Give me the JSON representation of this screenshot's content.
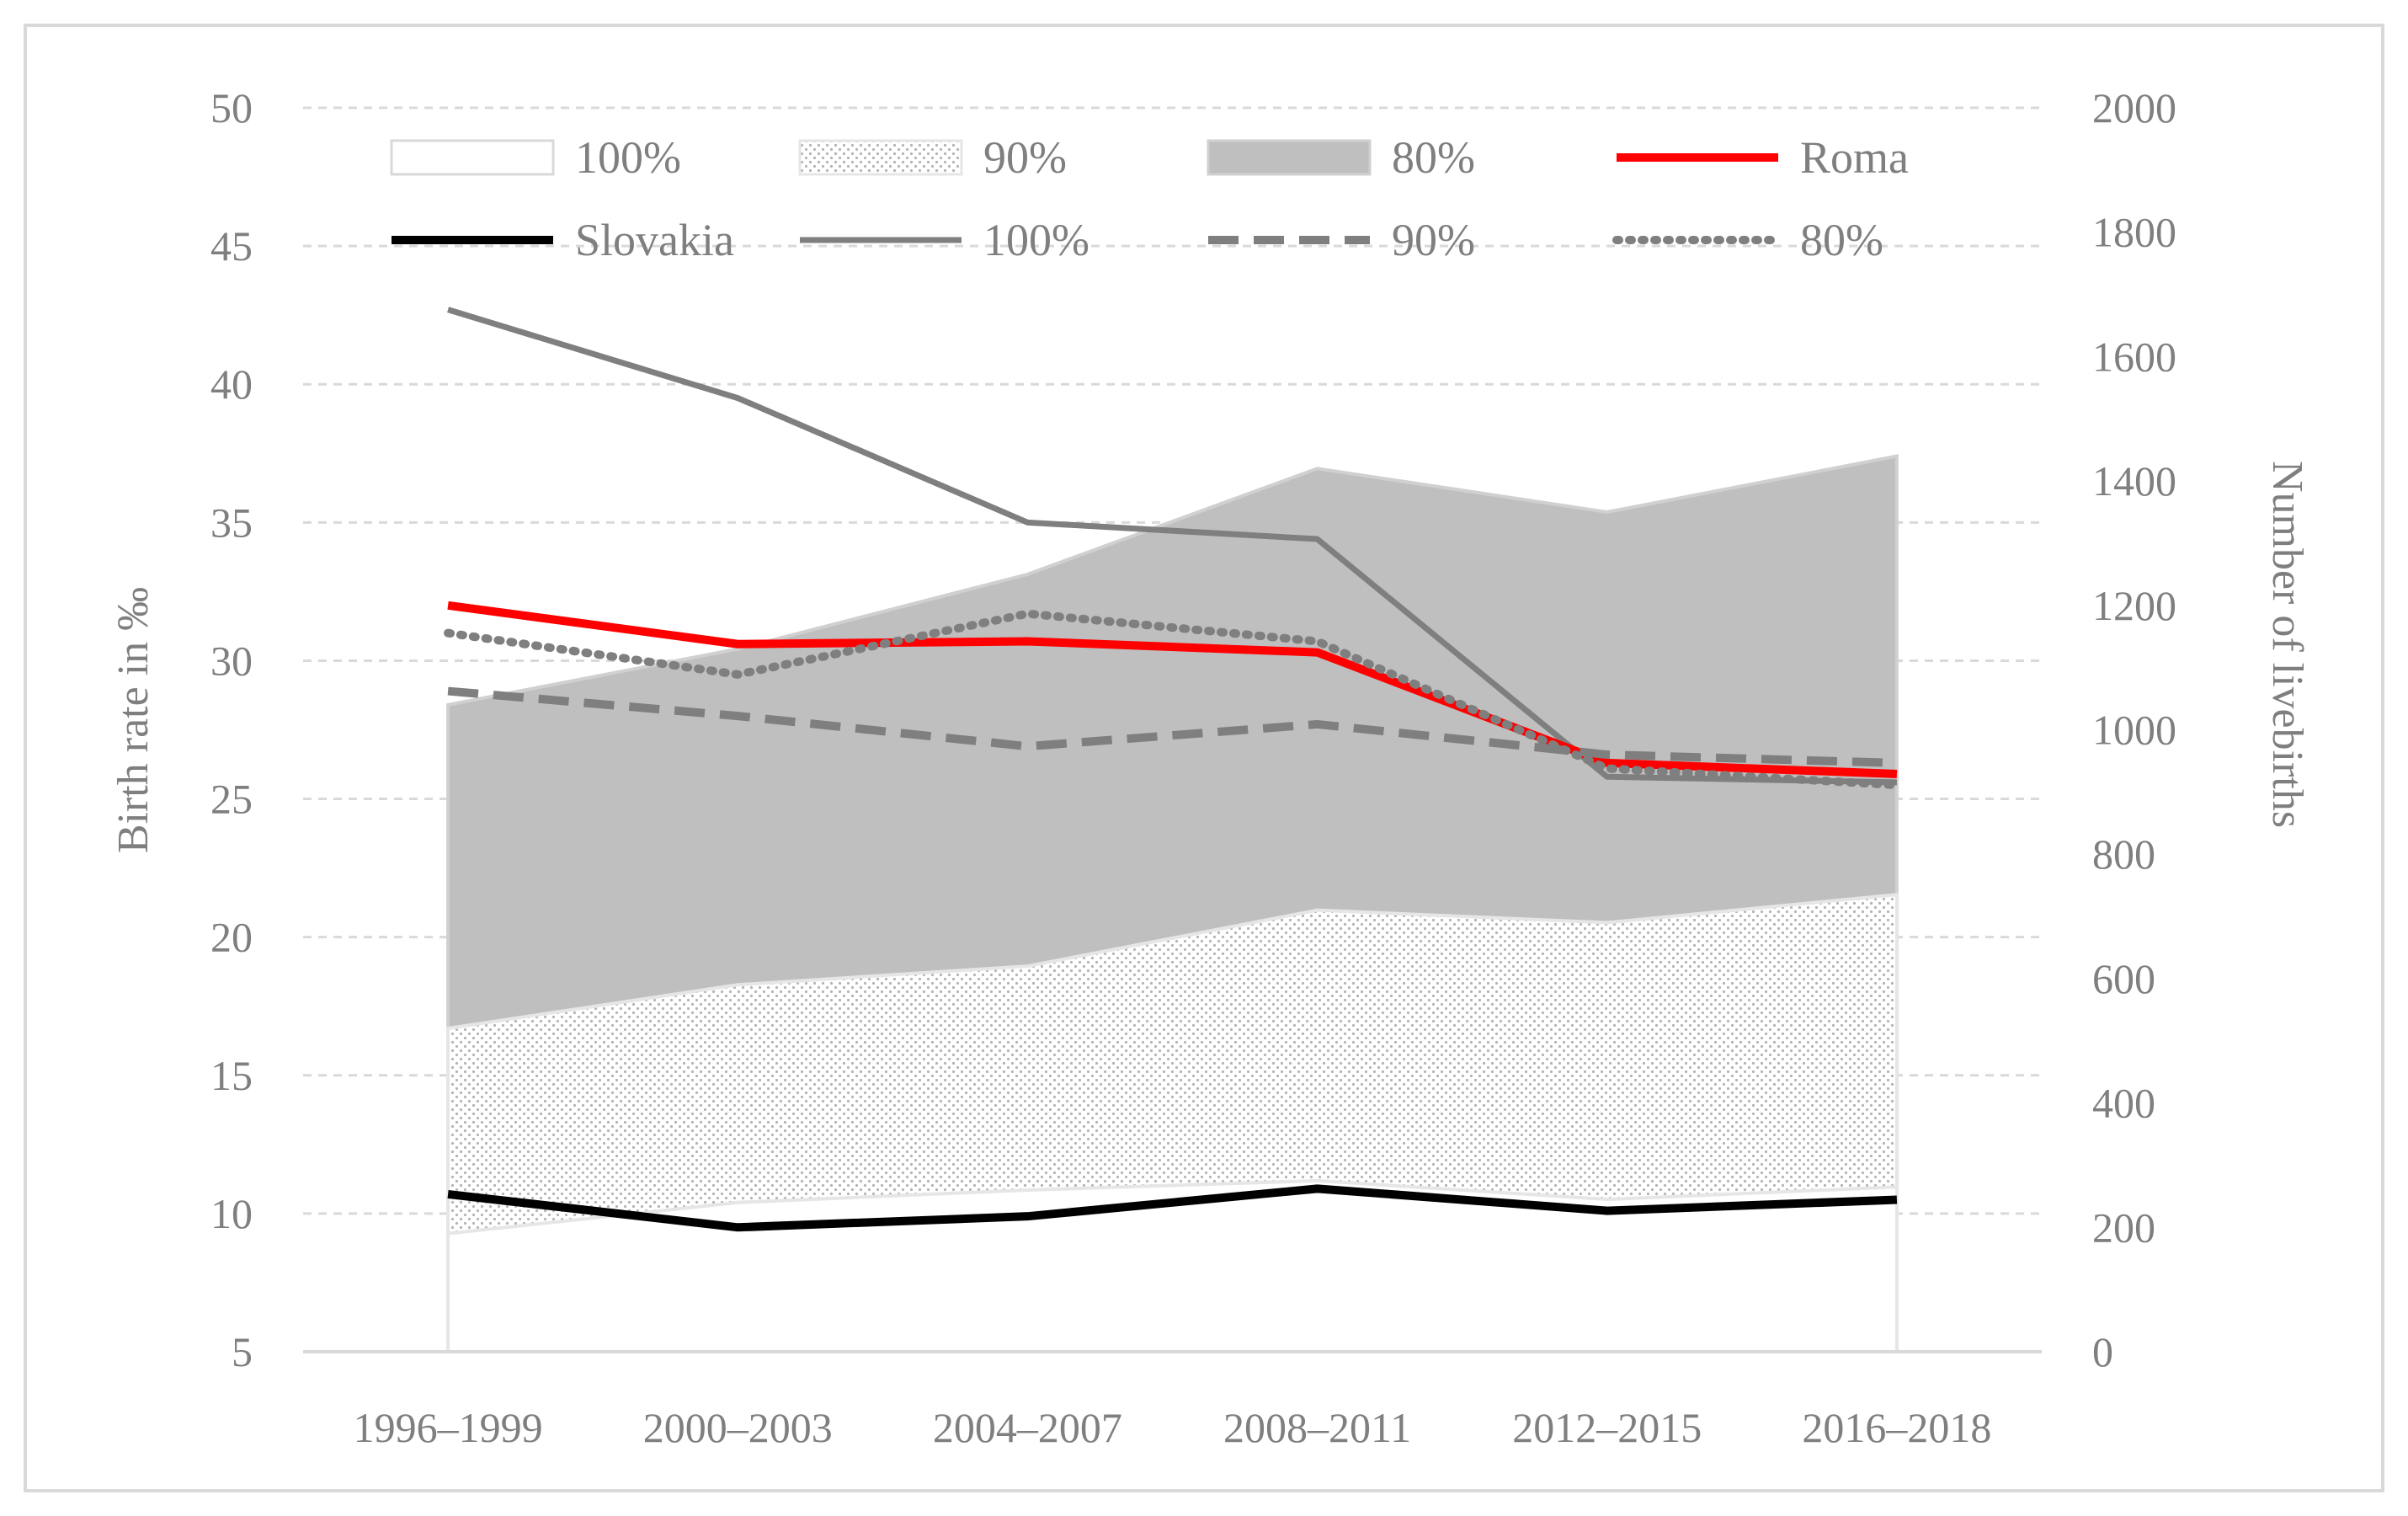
{
  "chart_data": {
    "type": "area",
    "categories": [
      "1996–1999",
      "2000–2003",
      "2004–2007",
      "2008–2011",
      "2012–2015",
      "2016–2018"
    ],
    "ylabel_left": "Birth rate in ‰",
    "ylabel_right": "Number of livebirths",
    "ylim_left": [
      5,
      50
    ],
    "ylim_right": [
      0,
      2000
    ],
    "yticks_left": [
      5,
      10,
      15,
      20,
      25,
      30,
      35,
      40,
      45,
      50
    ],
    "yticks_right": [
      0,
      200,
      400,
      600,
      800,
      1000,
      1200,
      1400,
      1600,
      1800,
      2000
    ],
    "grid": true,
    "legend_position": "top",
    "area_series": [
      {
        "name": "100%",
        "axis": "right",
        "style": "white",
        "values": [
          190,
          240,
          260,
          275,
          245,
          265
        ]
      },
      {
        "name": "90%",
        "axis": "right",
        "style": "dotted",
        "values": [
          520,
          590,
          620,
          710,
          690,
          735
        ]
      },
      {
        "name": "80%",
        "axis": "right",
        "style": "gray",
        "values": [
          1040,
          1130,
          1250,
          1420,
          1350,
          1440
        ]
      }
    ],
    "line_series": [
      {
        "name": "Roma",
        "axis": "left",
        "style": "red",
        "values": [
          32.0,
          30.6,
          30.7,
          30.3,
          26.3,
          25.9
        ]
      },
      {
        "name": "Slovakia",
        "axis": "left",
        "style": "black",
        "values": [
          10.7,
          9.5,
          9.9,
          10.9,
          10.1,
          10.5
        ]
      },
      {
        "name": "100%",
        "axis": "left",
        "style": "solid-gray",
        "values": [
          42.7,
          39.5,
          35.0,
          34.4,
          25.8,
          25.6
        ]
      },
      {
        "name": "90%",
        "axis": "left",
        "style": "dashed-gray",
        "values": [
          28.9,
          28.0,
          26.9,
          27.7,
          26.6,
          26.3
        ]
      },
      {
        "name": "80%",
        "axis": "left",
        "style": "dotted-gray",
        "values": [
          31.0,
          29.5,
          31.7,
          30.7,
          26.1,
          25.5
        ]
      }
    ],
    "legend": [
      {
        "label": "100%",
        "kind": "area-white"
      },
      {
        "label": "90%",
        "kind": "area-dotted"
      },
      {
        "label": "80%",
        "kind": "area-gray"
      },
      {
        "label": "Roma",
        "kind": "line-red"
      },
      {
        "label": "Slovakia",
        "kind": "line-black"
      },
      {
        "label": "100%",
        "kind": "line-solid-gray"
      },
      {
        "label": "90%",
        "kind": "line-dashed-gray"
      },
      {
        "label": "80%",
        "kind": "line-dotted-gray"
      }
    ]
  },
  "colors": {
    "red": "#ff0000",
    "black": "#000000",
    "gray_line": "#7f7f7f",
    "area_gray": "#bfbfbf",
    "grid": "#d9d9d9",
    "axis": "#d9d9d9",
    "text": "#7f7f7f"
  }
}
